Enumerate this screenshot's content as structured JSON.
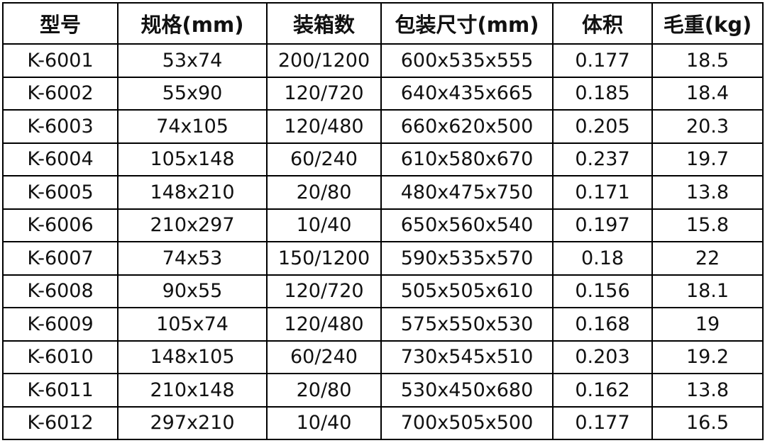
{
  "table": {
    "columns": [
      "型号",
      "规格(mm)",
      "装箱数",
      "包装尺寸(mm)",
      "体积",
      "毛重(kg)"
    ],
    "rows": [
      [
        "K-6001",
        "53x74",
        "200/1200",
        "600x535x555",
        "0.177",
        "18.5"
      ],
      [
        "K-6002",
        "55x90",
        "120/720",
        "640x435x665",
        "0.185",
        "18.4"
      ],
      [
        "K-6003",
        "74x105",
        "120/480",
        "660x620x500",
        "0.205",
        "20.3"
      ],
      [
        "K-6004",
        "105x148",
        "60/240",
        "610x580x670",
        "0.237",
        "19.7"
      ],
      [
        "K-6005",
        "148x210",
        "20/80",
        "480x475x750",
        "0.171",
        "13.8"
      ],
      [
        "K-6006",
        "210x297",
        "10/40",
        "650x560x540",
        "0.197",
        "15.8"
      ],
      [
        "K-6007",
        "74x53",
        "150/1200",
        "590x535x570",
        "0.18",
        "22"
      ],
      [
        "K-6008",
        "90x55",
        "120/720",
        "505x505x610",
        "0.156",
        "18.1"
      ],
      [
        "K-6009",
        "105x74",
        "120/480",
        "575x550x530",
        "0.168",
        "19"
      ],
      [
        "K-6010",
        "148x105",
        "60/240",
        "730x545x510",
        "0.203",
        "19.2"
      ],
      [
        "K-6011",
        "210x148",
        "20/80",
        "530x450x680",
        "0.162",
        "13.8"
      ],
      [
        "K-6012",
        "297x210",
        "10/40",
        "700x505x500",
        "0.177",
        "16.5"
      ]
    ]
  }
}
